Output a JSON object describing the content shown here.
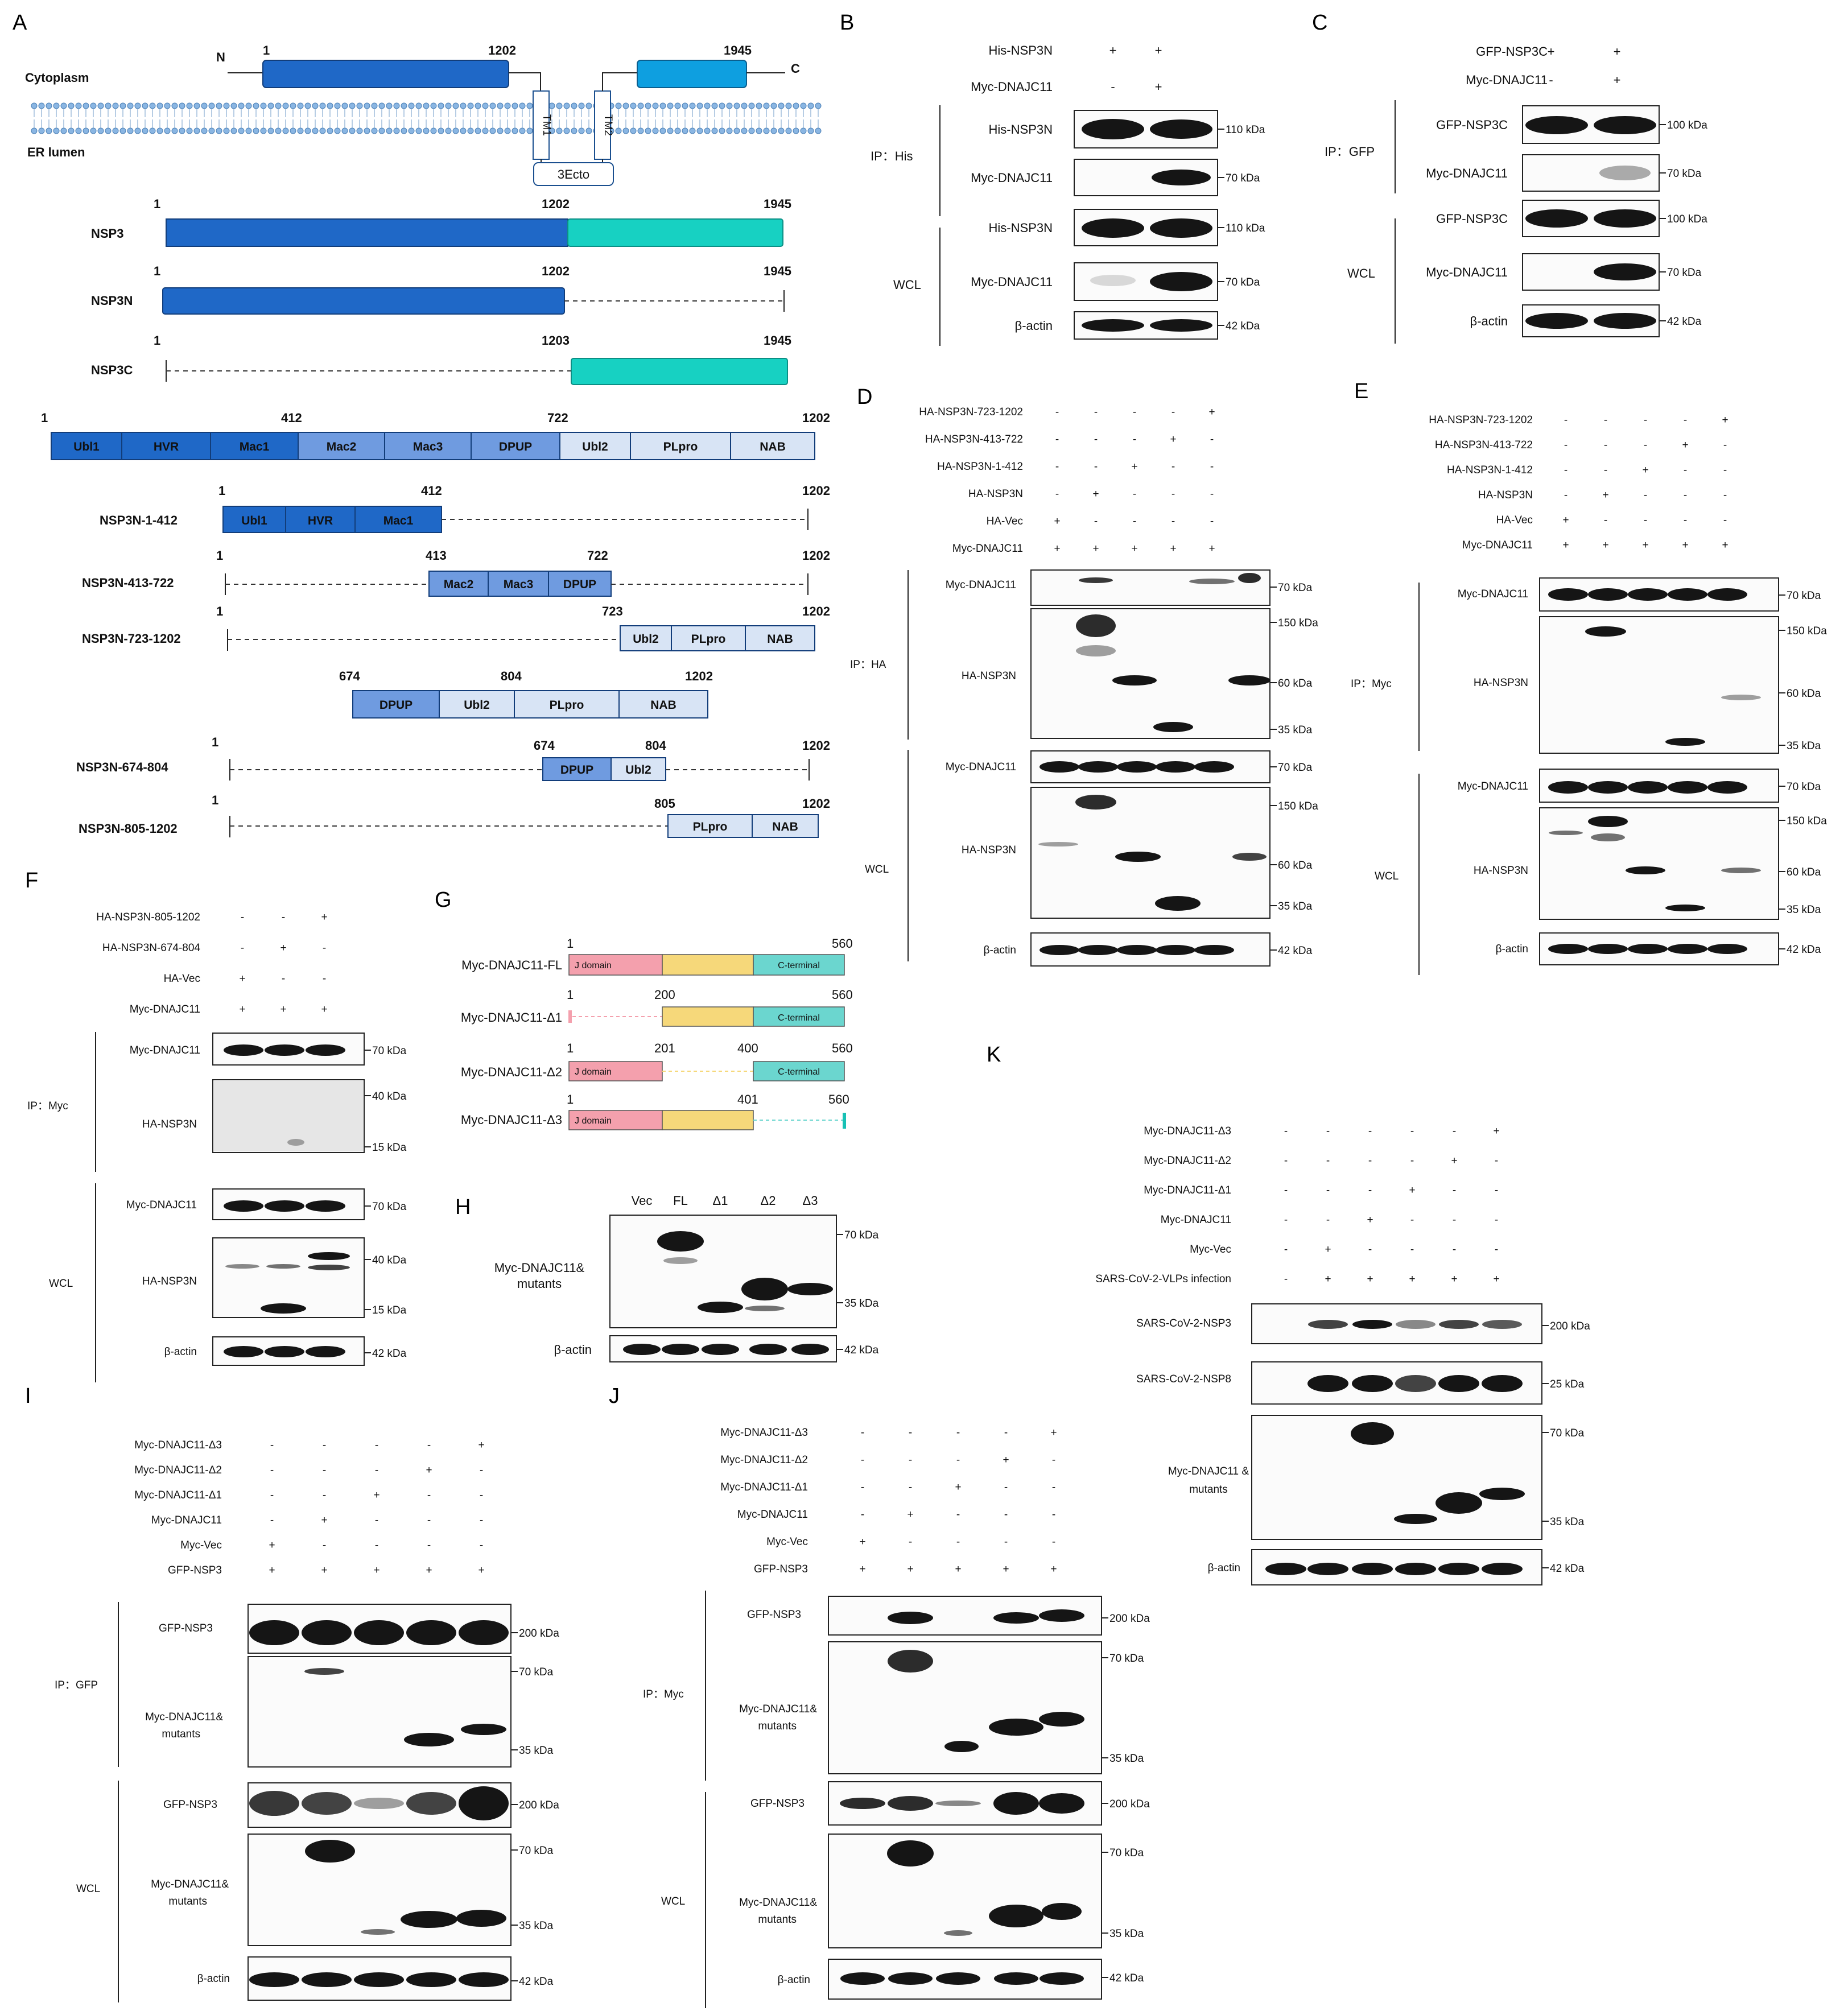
{
  "panelA": {
    "letter": "A",
    "cytoplasm": "Cytoplasm",
    "er_lumen": "ER lumen",
    "n": "N",
    "c": "C",
    "num_1": "1",
    "num_1202": "1202",
    "num_1945": "1945",
    "tm1": "TM1",
    "tm2": "TM2",
    "ecto": "3Ecto",
    "constructs": [
      {
        "name": "NSP3",
        "start": "1",
        "mid": "1202",
        "end": "1945"
      },
      {
        "name": "NSP3N",
        "start": "1",
        "mid": "1202",
        "end": "1945"
      },
      {
        "name": "NSP3C",
        "start": "1",
        "mid": "1203",
        "end": "1945"
      }
    ],
    "domain_bar": {
      "start": "1",
      "n412": "412",
      "n722": "722",
      "end": "1202",
      "domains": [
        "Ubl1",
        "HVR",
        "Mac1",
        "Mac2",
        "Mac3",
        "DPUP",
        "Ubl2",
        "PLpro",
        "NAB"
      ]
    },
    "sub": [
      {
        "name": "NSP3N-1-412",
        "start": "1",
        "n": "412",
        "end": "1202",
        "domains": [
          "Ubl1",
          "HVR",
          "Mac1"
        ]
      },
      {
        "name": "NSP3N-413-722",
        "start": "1",
        "a": "413",
        "b": "722",
        "end": "1202",
        "domains": [
          "Mac2",
          "Mac3",
          "DPUP"
        ]
      },
      {
        "name": "NSP3N-723-1202",
        "start": "1",
        "a": "723",
        "end": "1202",
        "domains": [
          "Ubl2",
          "PLpro",
          "NAB"
        ]
      }
    ],
    "bar2": {
      "a": "674",
      "b": "804",
      "end": "1202",
      "domains": [
        "DPUP",
        "Ubl2",
        "PLpro",
        "NAB"
      ]
    },
    "sub2": [
      {
        "name": "NSP3N-674-804",
        "start": "1",
        "a": "674",
        "b": "804",
        "end": "1202",
        "domains": [
          "DPUP",
          "Ubl2"
        ]
      },
      {
        "name": "NSP3N-805-1202",
        "start": "1",
        "a": "805",
        "end": "1202",
        "domains": [
          "PLpro",
          "NAB"
        ]
      }
    ]
  },
  "panelB": {
    "letter": "B",
    "rows": [
      {
        "label": "His-NSP3N",
        "vals": [
          "+",
          "+"
        ]
      },
      {
        "label": "Myc-DNAJC11",
        "vals": [
          "-",
          "+"
        ]
      }
    ],
    "ip": "IP：His",
    "wcl": "WCL",
    "blots": [
      "His-NSP3N",
      "Myc-DNAJC11",
      "His-NSP3N",
      "Myc-DNAJC11",
      "β-actin"
    ],
    "kda": [
      "110 kDa",
      "70 kDa",
      "110 kDa",
      "70 kDa",
      "42 kDa"
    ]
  },
  "panelC": {
    "letter": "C",
    "rows": [
      {
        "label": "GFP-NSP3C",
        "vals": [
          "+",
          "+"
        ]
      },
      {
        "label": "Myc-DNAJC11",
        "vals": [
          "-",
          "+"
        ]
      }
    ],
    "ip": "IP：GFP",
    "wcl": "WCL",
    "blots": [
      "GFP-NSP3C",
      "Myc-DNAJC11",
      "GFP-NSP3C",
      "Myc-DNAJC11",
      "β-actin"
    ],
    "kda": [
      "100 kDa",
      "70 kDa",
      "100 kDa",
      "70 kDa",
      "42 kDa"
    ]
  },
  "panelD": {
    "letter": "D",
    "rows": [
      {
        "label": "HA-NSP3N-723-1202",
        "vals": [
          "-",
          "-",
          "-",
          "-",
          "+"
        ]
      },
      {
        "label": "HA-NSP3N-413-722",
        "vals": [
          "-",
          "-",
          "-",
          "+",
          "-"
        ]
      },
      {
        "label": "HA-NSP3N-1-412",
        "vals": [
          "-",
          "-",
          "+",
          "-",
          "-"
        ]
      },
      {
        "label": "HA-NSP3N",
        "vals": [
          "-",
          "+",
          "-",
          "-",
          "-"
        ]
      },
      {
        "label": "HA-Vec",
        "vals": [
          "+",
          "-",
          "-",
          "-",
          "-"
        ]
      },
      {
        "label": "Myc-DNAJC11",
        "vals": [
          "+",
          "+",
          "+",
          "+",
          "+"
        ]
      }
    ],
    "ip": "IP：HA",
    "wcl": "WCL",
    "blots": [
      "Myc-DNAJC11",
      "HA-NSP3N",
      "Myc-DNAJC11",
      "HA-NSP3N",
      "β-actin"
    ],
    "kda": [
      "70 kDa",
      "150 kDa",
      "60 kDa",
      "35 kDa",
      "70 kDa",
      "150 kDa",
      "60 kDa",
      "35 kDa",
      "42 kDa"
    ]
  },
  "panelE": {
    "letter": "E",
    "rows": [
      {
        "label": "HA-NSP3N-723-1202",
        "vals": [
          "-",
          "-",
          "-",
          "-",
          "+"
        ]
      },
      {
        "label": "HA-NSP3N-413-722",
        "vals": [
          "-",
          "-",
          "-",
          "+",
          "-"
        ]
      },
      {
        "label": "HA-NSP3N-1-412",
        "vals": [
          "-",
          "-",
          "+",
          "-",
          "-"
        ]
      },
      {
        "label": "HA-NSP3N",
        "vals": [
          "-",
          "+",
          "-",
          "-",
          "-"
        ]
      },
      {
        "label": "HA-Vec",
        "vals": [
          "+",
          "-",
          "-",
          "-",
          "-"
        ]
      },
      {
        "label": "Myc-DNAJC11",
        "vals": [
          "+",
          "+",
          "+",
          "+",
          "+"
        ]
      }
    ],
    "ip": "IP：Myc",
    "wcl": "WCL",
    "blots": [
      "Myc-DNAJC11",
      "HA-NSP3N",
      "Myc-DNAJC11",
      "HA-NSP3N",
      "β-actin"
    ],
    "kda": [
      "70 kDa",
      "150 kDa",
      "60 kDa",
      "35 kDa",
      "70 kDa",
      "150 kDa",
      "60 kDa",
      "35 kDa",
      "42 kDa"
    ]
  },
  "panelF": {
    "letter": "F",
    "rows": [
      {
        "label": "HA-NSP3N-805-1202",
        "vals": [
          "-",
          "-",
          "+"
        ]
      },
      {
        "label": "HA-NSP3N-674-804",
        "vals": [
          "-",
          "+",
          "-"
        ]
      },
      {
        "label": "HA-Vec",
        "vals": [
          "+",
          "-",
          "-"
        ]
      },
      {
        "label": "Myc-DNAJC11",
        "vals": [
          "+",
          "+",
          "+"
        ]
      }
    ],
    "ip": "IP：Myc",
    "wcl": "WCL",
    "blots": [
      "Myc-DNAJC11",
      "HA-NSP3N",
      "Myc-DNAJC11",
      "HA-NSP3N",
      "β-actin"
    ],
    "kda": [
      "70 kDa",
      "40 kDa",
      "15 kDa",
      "70 kDa",
      "40 kDa",
      "15 kDa",
      "42 kDa"
    ]
  },
  "panelG": {
    "letter": "G",
    "constructs": [
      {
        "name": "Myc-DNAJC11-FL",
        "nums": [
          "1",
          "560"
        ]
      },
      {
        "name": "Myc-DNAJC11-Δ1",
        "nums": [
          "1",
          "200",
          "560"
        ]
      },
      {
        "name": "Myc-DNAJC11-Δ2",
        "nums": [
          "1",
          "201",
          "400",
          "560"
        ]
      },
      {
        "name": "Myc-DNAJC11-Δ3",
        "nums": [
          "1",
          "401",
          "560"
        ]
      }
    ],
    "jdomain": "J domain",
    "cterm": "C-terminal"
  },
  "panelH": {
    "letter": "H",
    "lanes": [
      "Vec",
      "FL",
      "Δ1",
      "Δ2",
      "Δ3"
    ],
    "label1": "Myc-DNAJC11&",
    "label2": "mutants",
    "actin": "β-actin",
    "kda": [
      "70 kDa",
      "35 kDa",
      "42 kDa"
    ]
  },
  "panelI": {
    "letter": "I",
    "rows": [
      {
        "label": "Myc-DNAJC11-Δ3",
        "vals": [
          "-",
          "-",
          "-",
          "-",
          "+"
        ]
      },
      {
        "label": "Myc-DNAJC11-Δ2",
        "vals": [
          "-",
          "-",
          "-",
          "+",
          "-"
        ]
      },
      {
        "label": "Myc-DNAJC11-Δ1",
        "vals": [
          "-",
          "-",
          "+",
          "-",
          "-"
        ]
      },
      {
        "label": "Myc-DNAJC11",
        "vals": [
          "-",
          "+",
          "-",
          "-",
          "-"
        ]
      },
      {
        "label": "Myc-Vec",
        "vals": [
          "+",
          "-",
          "-",
          "-",
          "-"
        ]
      },
      {
        "label": "GFP-NSP3",
        "vals": [
          "+",
          "+",
          "+",
          "+",
          "+"
        ]
      }
    ],
    "ip": "IP：GFP",
    "wcl": "WCL",
    "blots": [
      "GFP-NSP3",
      "Myc-DNAJC11&",
      "mutants",
      "GFP-NSP3",
      "Myc-DNAJC11&",
      "mutants",
      "β-actin"
    ],
    "kda": [
      "200 kDa",
      "70 kDa",
      "35 kDa",
      "200 kDa",
      "70 kDa",
      "35 kDa",
      "42 kDa"
    ]
  },
  "panelJ": {
    "letter": "J",
    "rows": [
      {
        "label": "Myc-DNAJC11-Δ3",
        "vals": [
          "-",
          "-",
          "-",
          "-",
          "+"
        ]
      },
      {
        "label": "Myc-DNAJC11-Δ2",
        "vals": [
          "-",
          "-",
          "-",
          "+",
          "-"
        ]
      },
      {
        "label": "Myc-DNAJC11-Δ1",
        "vals": [
          "-",
          "-",
          "+",
          "-",
          "-"
        ]
      },
      {
        "label": "Myc-DNAJC11",
        "vals": [
          "-",
          "+",
          "-",
          "-",
          "-"
        ]
      },
      {
        "label": "Myc-Vec",
        "vals": [
          "+",
          "-",
          "-",
          "-",
          "-"
        ]
      },
      {
        "label": "GFP-NSP3",
        "vals": [
          "+",
          "+",
          "+",
          "+",
          "+"
        ]
      }
    ],
    "ip": "IP：Myc",
    "wcl": "WCL",
    "blots": [
      "GFP-NSP3",
      "Myc-DNAJC11&",
      "mutants",
      "GFP-NSP3",
      "Myc-DNAJC11&",
      "mutants",
      "β-actin"
    ],
    "kda": [
      "200 kDa",
      "70 kDa",
      "35 kDa",
      "200 kDa",
      "70 kDa",
      "35 kDa",
      "42 kDa"
    ]
  },
  "panelK": {
    "letter": "K",
    "rows": [
      {
        "label": "Myc-DNAJC11-Δ3",
        "vals": [
          "-",
          "-",
          "-",
          "-",
          "-",
          "+"
        ]
      },
      {
        "label": "Myc-DNAJC11-Δ2",
        "vals": [
          "-",
          "-",
          "-",
          "-",
          "+",
          "-"
        ]
      },
      {
        "label": "Myc-DNAJC11-Δ1",
        "vals": [
          "-",
          "-",
          "-",
          "+",
          "-",
          "-"
        ]
      },
      {
        "label": "Myc-DNAJC11",
        "vals": [
          "-",
          "-",
          "+",
          "-",
          "-",
          "-"
        ]
      },
      {
        "label": "Myc-Vec",
        "vals": [
          "-",
          "+",
          "-",
          "-",
          "-",
          "-"
        ]
      },
      {
        "label": "SARS-CoV-2-VLPs infection",
        "vals": [
          "-",
          "+",
          "+",
          "+",
          "+",
          "+"
        ]
      }
    ],
    "blots": [
      "SARS-CoV-2-NSP3",
      "SARS-CoV-2-NSP8",
      "Myc-DNAJC11 &",
      "mutants",
      "β-actin"
    ],
    "kda": [
      "200 kDa",
      "25 kDa",
      "70 kDa",
      "35 kDa",
      "42 kDa"
    ]
  }
}
